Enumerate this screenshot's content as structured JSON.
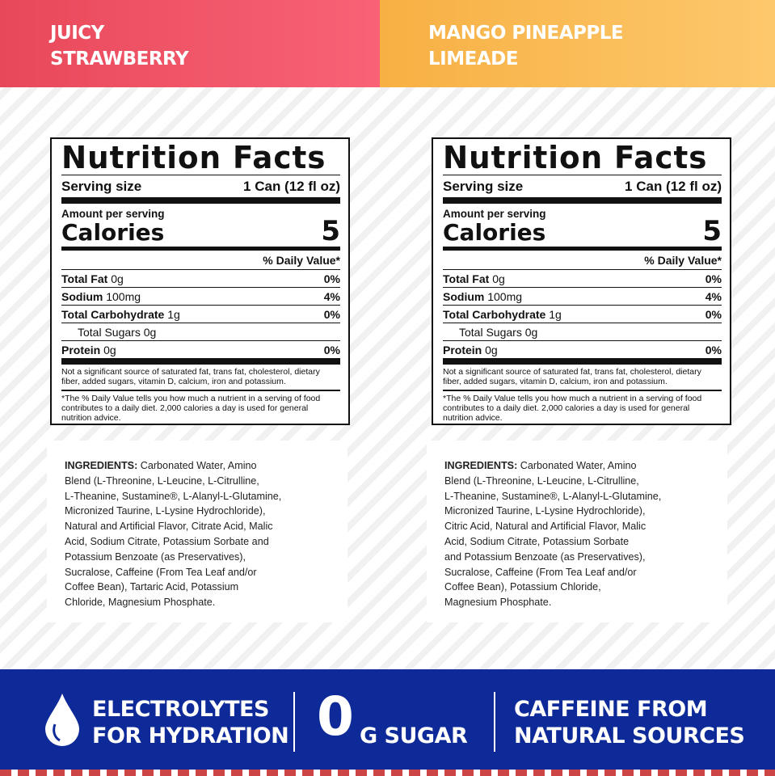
{
  "flavors": [
    {
      "name_line1": "JUICY",
      "name_line2": "STRAWBERRY",
      "color": "#f0566a",
      "nutrition": {
        "title": "Nutrition Facts",
        "serving_label": "Serving size",
        "serving_value": "1 Can (12 fl oz)",
        "amount_label": "Amount per serving",
        "calories_label": "Calories",
        "calories_value": "5",
        "dv_header": "% Daily Value*",
        "rows": [
          {
            "name": "Total Fat",
            "amount": "0g",
            "dv": "0%"
          },
          {
            "name": "Sodium",
            "amount": "100mg",
            "dv": "4%"
          },
          {
            "name": "Total Carbohydrate",
            "amount": "1g",
            "dv": "0%"
          },
          {
            "name": "Total Sugars",
            "amount": "0g",
            "dv": ""
          },
          {
            "name": "Protein",
            "amount": "0g",
            "dv": "0%"
          }
        ],
        "note": "Not a significant source of saturated fat, trans fat, cholesterol, dietary fiber, added sugars, vitamin D, calcium, iron and potassium.",
        "footnote": "*The % Daily Value tells you how much a nutrient in a serving of food contributes to a daily diet. 2,000 calories a day is used for general nutrition advice."
      },
      "ingredients": {
        "label": "INGREDIENTS:",
        "lines": [
          " Carbonated Water, Amino",
          "Blend (L-Threonine, L-Leucine, L-Citrulline,",
          "L-Theanine, Sustamine®, L-Alanyl-L-Glutamine,",
          "Micronized Taurine, L-Lysine Hydrochloride),",
          "Natural and Artificial Flavor, Citrate Acid, Malic",
          "Acid, Sodium Citrate, Potassium Sorbate and",
          "Potassium Benzoate (as Preservatives),",
          "Sucralose,  Caffeine (From Tea Leaf and/or",
          "Coffee Bean), Tartaric Acid, Potassium",
          "Chloride, Magnesium Phosphate."
        ]
      }
    },
    {
      "name_line1": "MANGO PINEAPPLE",
      "name_line2": "LIMEADE",
      "color": "#fbbb55",
      "nutrition": {
        "title": "Nutrition Facts",
        "serving_label": "Serving size",
        "serving_value": "1 Can (12 fl oz)",
        "amount_label": "Amount per serving",
        "calories_label": "Calories",
        "calories_value": "5",
        "dv_header": "% Daily Value*",
        "rows": [
          {
            "name": "Total Fat",
            "amount": "0g",
            "dv": "0%"
          },
          {
            "name": "Sodium",
            "amount": "100mg",
            "dv": "4%"
          },
          {
            "name": "Total Carbohydrate",
            "amount": "1g",
            "dv": "0%"
          },
          {
            "name": "Total Sugars",
            "amount": "0g",
            "dv": ""
          },
          {
            "name": "Protein",
            "amount": "0g",
            "dv": "0%"
          }
        ],
        "note": "Not a significant source of saturated fat, trans fat, cholesterol, dietary fiber, added sugars, vitamin D, calcium, iron and potassium.",
        "footnote": "*The % Daily Value tells you how much a nutrient in a serving of food contributes to a daily diet. 2,000 calories a day is used for general nutrition advice."
      },
      "ingredients": {
        "label": "INGREDIENTS:",
        "lines": [
          " Carbonated Water, Amino",
          "Blend (L-Threonine, L-Leucine, L-Citrulline,",
          "L-Theanine, Sustamine®, L-Alanyl-L-Glutamine,",
          "Micronized Taurine, L-Lysine Hydrochloride),",
          "Citric Acid, Natural and Artificial Flavor, Malic",
          "Acid, Sodium Citrate, Potassium Sorbate",
          "and Potassium Benzoate (as Preservatives),",
          "Sucralose,  Caffeine (From Tea Leaf and/or",
          "Coffee Bean), Potassium Chloride,",
          "Magnesium Phosphate."
        ]
      }
    }
  ],
  "features": {
    "electrolytes_line1": "ELECTROLYTES",
    "electrolytes_line2": "FOR HYDRATION",
    "sugar_number": "0",
    "sugar_text": "G SUGAR",
    "caffeine_line1": "CAFFEINE FROM",
    "caffeine_line2": "NATURAL SOURCES",
    "icon": "water-drop-icon",
    "band_color": "#0e2a99"
  }
}
